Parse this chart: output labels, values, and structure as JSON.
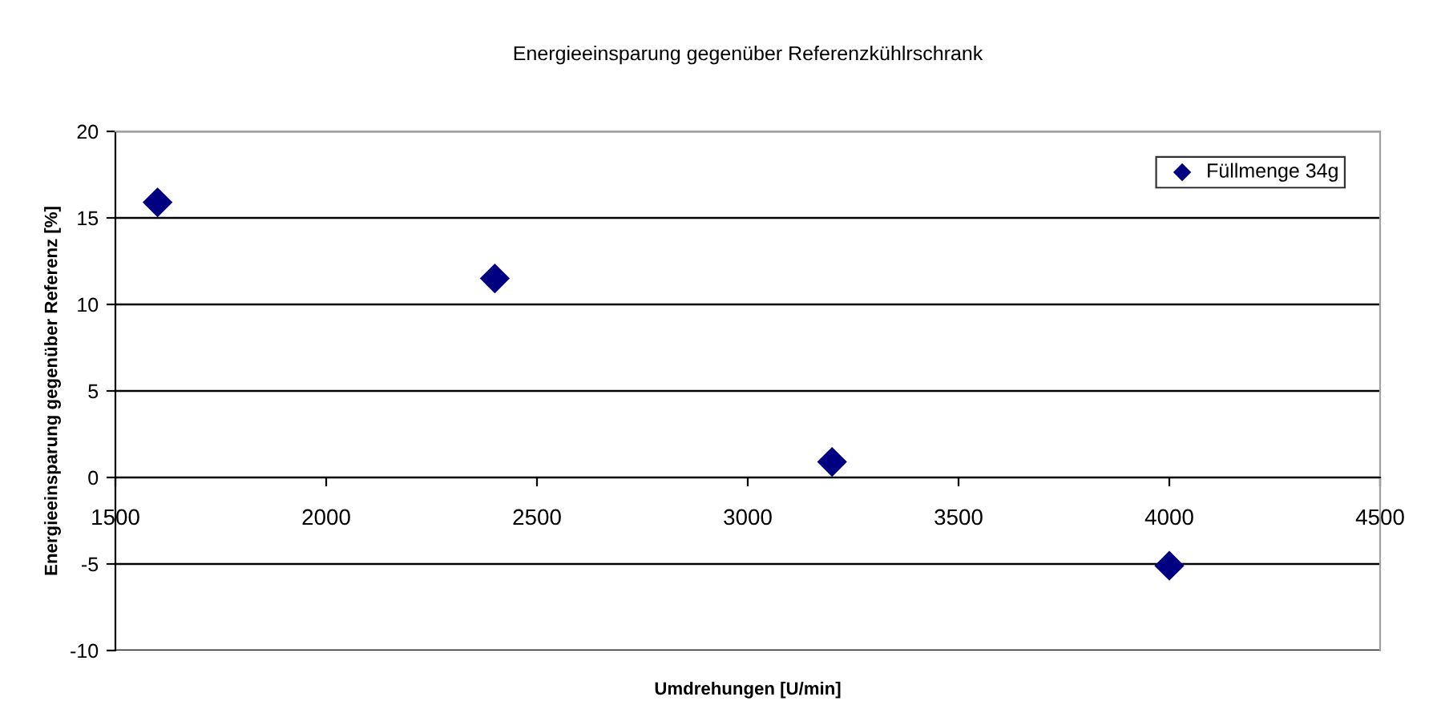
{
  "chart_data": {
    "type": "scatter",
    "title": "Energieeinsparung gegenüber Referenzkühlrschrank",
    "xlabel": "Umdrehungen [U/min]",
    "ylabel": "Energieeinsparung gegenüber Referenz [%]",
    "x": [
      1600,
      2400,
      3200,
      4000
    ],
    "series": [
      {
        "name": "Füllmenge 34g",
        "color": "#000080",
        "values": [
          15.9,
          11.5,
          0.9,
          -5.1
        ]
      }
    ],
    "xlim": [
      1500,
      4500
    ],
    "xticks": [
      1500,
      2000,
      2500,
      3000,
      3500,
      4000,
      4500
    ],
    "ylim": [
      -10,
      20
    ],
    "yticks": [
      -10,
      -5,
      0,
      5,
      10,
      15,
      20
    ],
    "grid": "y",
    "legend": "top right",
    "marker": "diamond"
  }
}
